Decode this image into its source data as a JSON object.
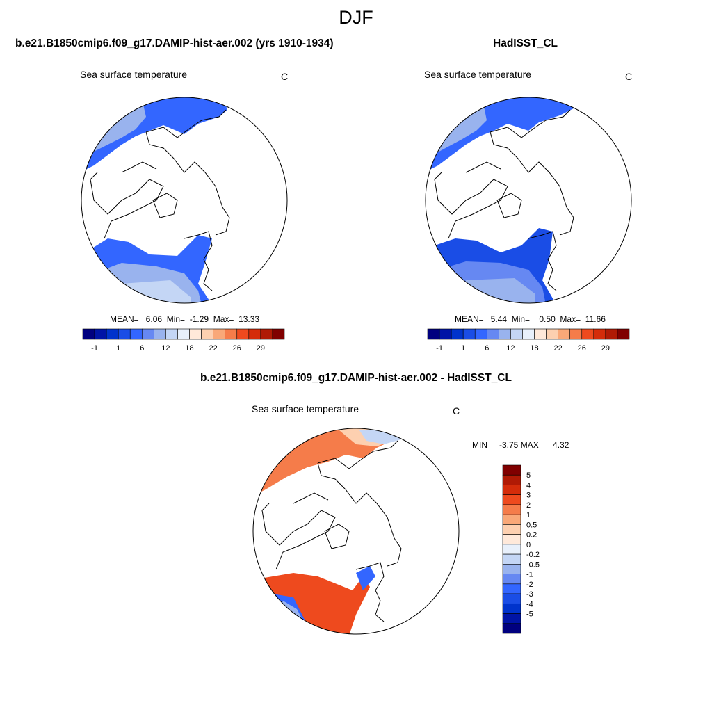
{
  "figure": {
    "title": "DJF"
  },
  "panels": [
    {
      "title": "b.e21.B1850cmip6.f09_g17.DAMIP-hist-aer.002 (yrs 1910-1934)",
      "variable": "Sea surface temperature",
      "units": "C",
      "stats": "MEAN=   6.06  Min=  -1.29  Max=  13.33"
    },
    {
      "title": "HadISST_CL",
      "variable": "Sea surface temperature",
      "units": "C",
      "stats": "MEAN=   5.44  Min=    0.50  Max=  11.66"
    },
    {
      "title": "b.e21.B1850cmip6.f09_g17.DAMIP-hist-aer.002 - HadISST_CL",
      "variable": "Sea surface temperature",
      "units": "C",
      "stats": "MIN =  -3.75 MAX =   4.32"
    }
  ],
  "colorbar_abs": {
    "labels": [
      "-1",
      "1",
      "6",
      "12",
      "18",
      "22",
      "26",
      "29"
    ],
    "colors": [
      "#00007f",
      "#0014a6",
      "#0033cc",
      "#1a4de6",
      "#3366ff",
      "#6688f2",
      "#99b3ee",
      "#c4d6f5",
      "#e8f0fb",
      "#ffe9da",
      "#fdd0b0",
      "#f9a878",
      "#f57c4a",
      "#ee4a1e",
      "#d42c0a",
      "#b01a05",
      "#800000"
    ]
  },
  "colorbar_diff": {
    "labels": [
      "5",
      "4",
      "3",
      "2",
      "1",
      "0.5",
      "0.2",
      "0",
      "-0.2",
      "-0.5",
      "-1",
      "-2",
      "-3",
      "-4",
      "-5"
    ],
    "colors": [
      "#800000",
      "#b01a05",
      "#d42c0a",
      "#ee4a1e",
      "#f57c4a",
      "#f9a878",
      "#fdd0b0",
      "#ffe9da",
      "#e8f0fb",
      "#c4d6f5",
      "#99b3ee",
      "#6688f2",
      "#3366ff",
      "#1a4de6",
      "#0033cc",
      "#0014a6",
      "#00007f"
    ]
  }
}
